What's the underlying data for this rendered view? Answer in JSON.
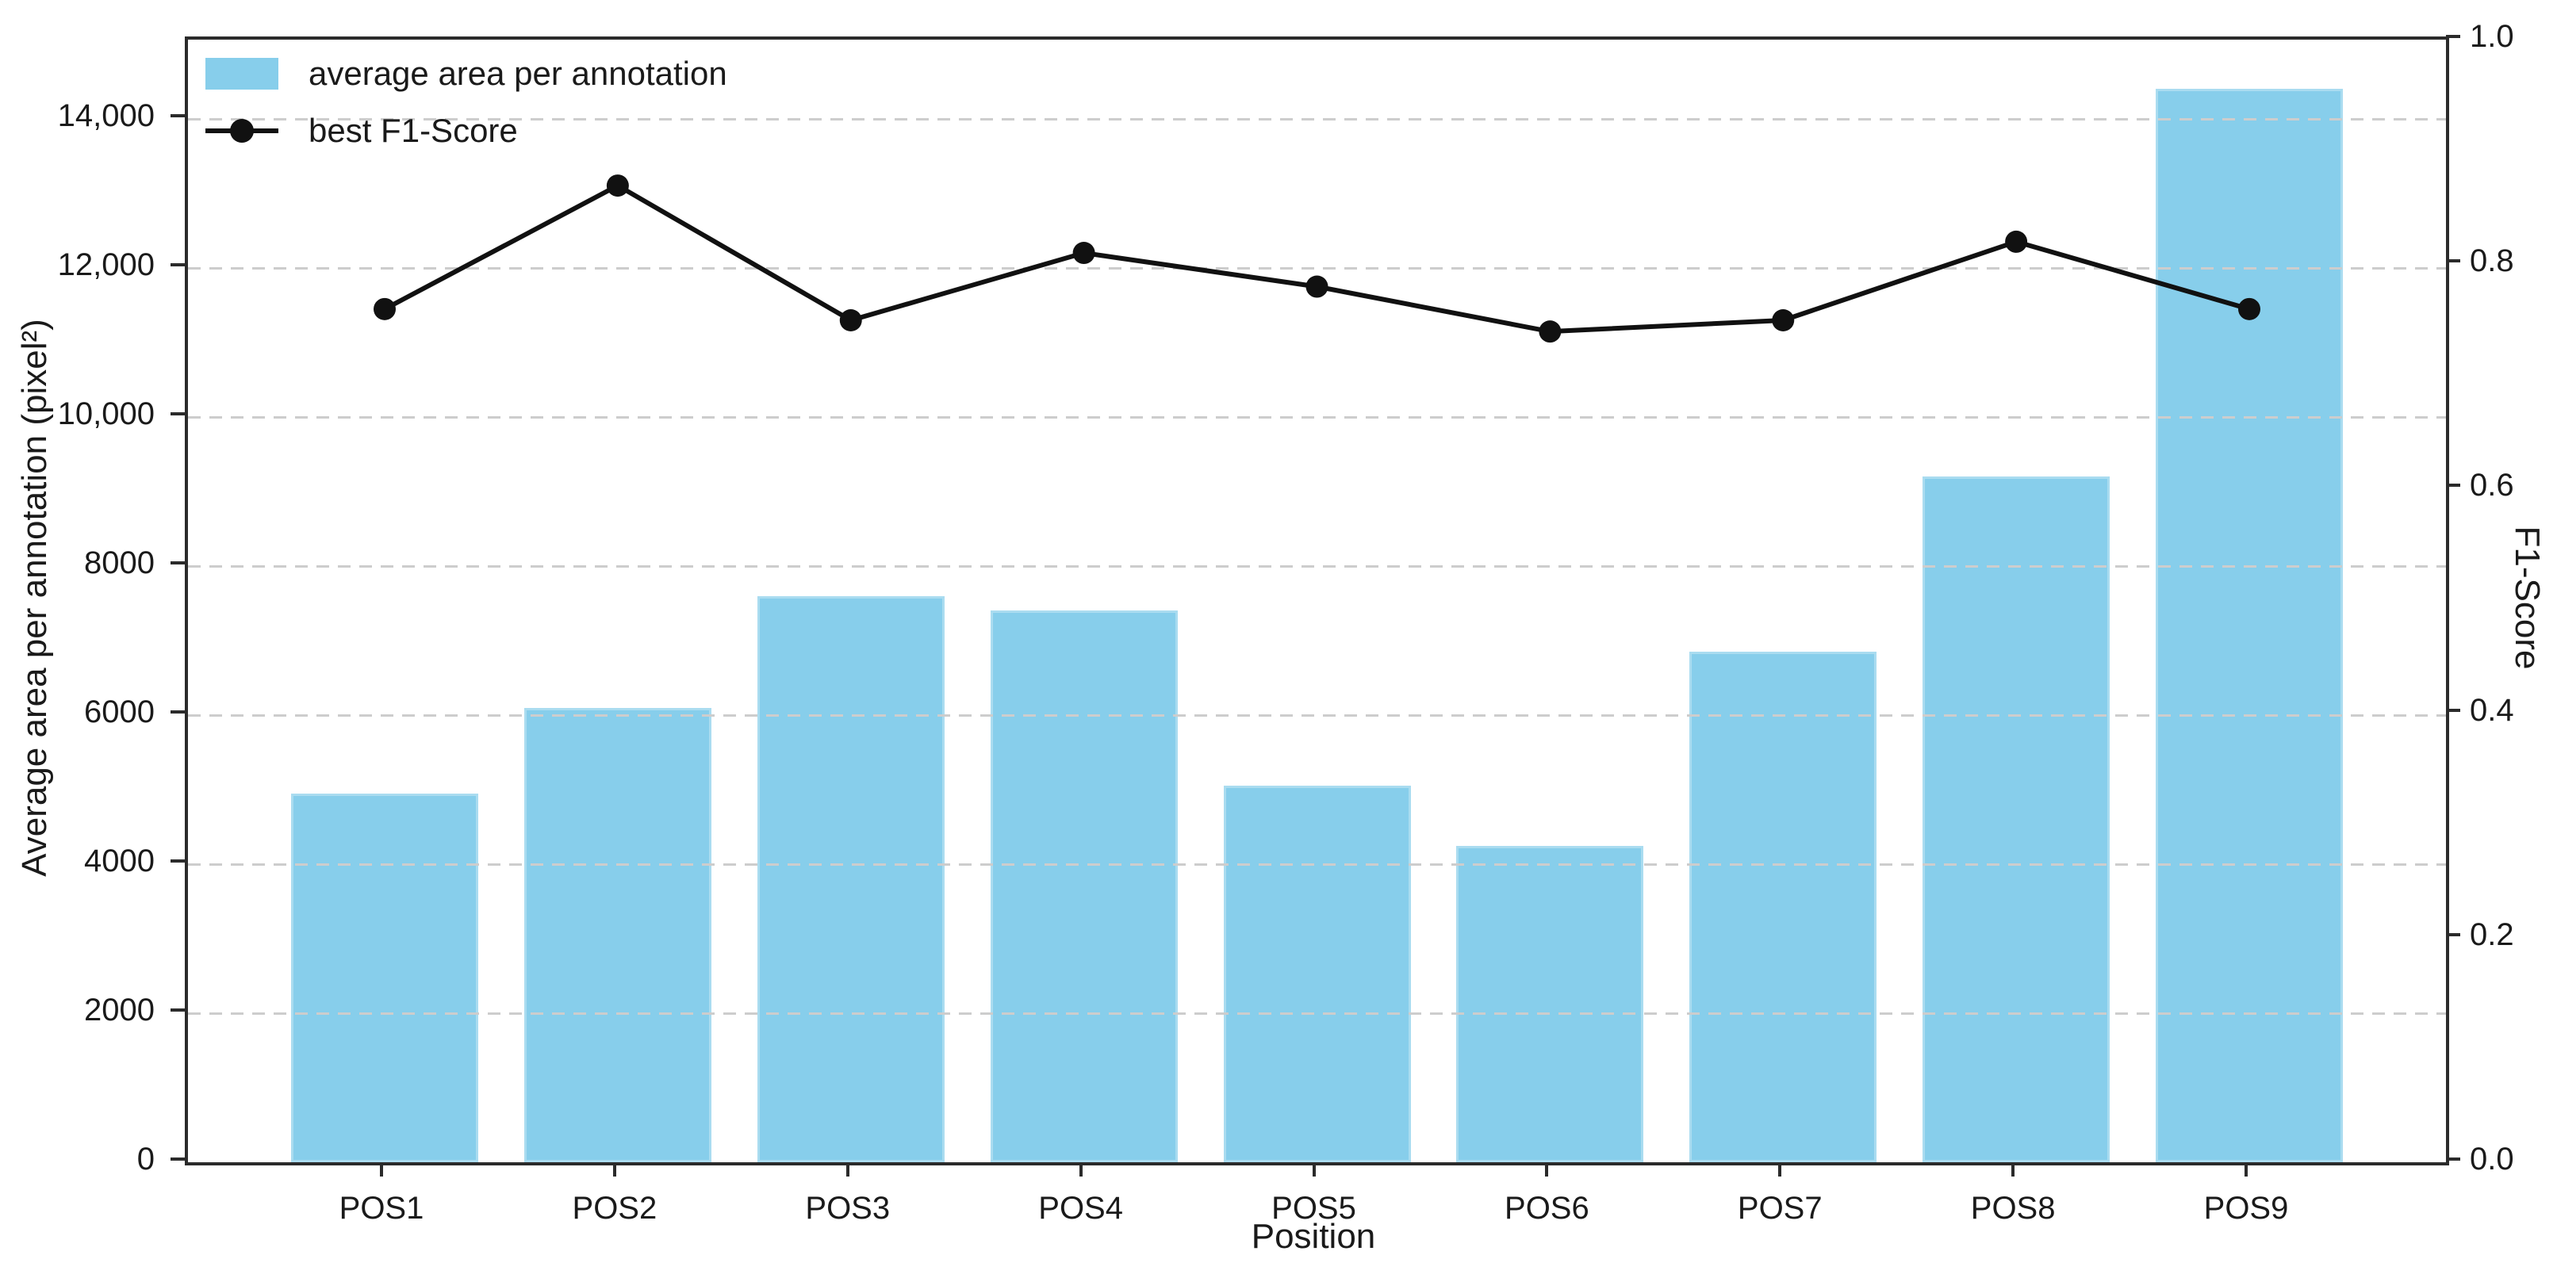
{
  "chart_data": {
    "type": "bar-line-combo",
    "categories": [
      "POS1",
      "POS2",
      "POS3",
      "POS4",
      "POS5",
      "POS6",
      "POS7",
      "POS8",
      "POS9"
    ],
    "series": [
      {
        "name": "average area per annotation",
        "type": "bar",
        "axis": "left",
        "color": "#87CEEB",
        "edge_color": "#aadcf0",
        "values": [
          4950,
          6100,
          7600,
          7400,
          5050,
          4250,
          6850,
          9200,
          14400
        ]
      },
      {
        "name": "best F1-Score",
        "type": "line",
        "axis": "right",
        "color": "#111111",
        "marker": "circle",
        "values": [
          0.76,
          0.87,
          0.75,
          0.81,
          0.78,
          0.74,
          0.75,
          0.82,
          0.76
        ]
      }
    ],
    "xlabel": "Position",
    "ylabel_left": "Average area per annotation (pixel²)",
    "ylabel_right": "F1-Score",
    "left_axis": {
      "ticks": [
        {
          "value": 0,
          "label": "0"
        },
        {
          "value": 2000,
          "label": "2000"
        },
        {
          "value": 4000,
          "label": "4000"
        },
        {
          "value": 6000,
          "label": "6000"
        },
        {
          "value": 8000,
          "label": "8000"
        },
        {
          "value": 10000,
          "label": "10,000"
        },
        {
          "value": 12000,
          "label": "12,000"
        },
        {
          "value": 14000,
          "label": "14,000"
        }
      ],
      "range": [
        0,
        15064
      ]
    },
    "right_axis": {
      "ticks": [
        {
          "value": 0.0,
          "label": "0.0"
        },
        {
          "value": 0.2,
          "label": "0.2"
        },
        {
          "value": 0.4,
          "label": "0.4"
        },
        {
          "value": 0.6,
          "label": "0.6"
        },
        {
          "value": 0.8,
          "label": "0.8"
        },
        {
          "value": 1.0,
          "label": "1.0"
        }
      ],
      "range": [
        0,
        1.0
      ]
    },
    "grid": {
      "axis": "left-y",
      "style": "dashed",
      "color": "#cdcdcd",
      "above_bars": true
    },
    "legend_position": "upper-left",
    "title": ""
  }
}
